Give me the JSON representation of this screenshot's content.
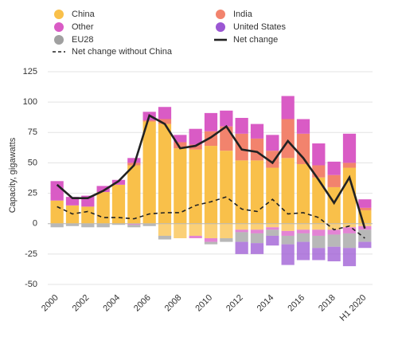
{
  "chart_data": {
    "type": "bar",
    "stacked": true,
    "y_label": "Capacity, gigawatts",
    "categories": [
      "2000",
      null,
      "2002",
      null,
      "2004",
      null,
      "2006",
      null,
      "2008",
      null,
      "2010",
      null,
      "2012",
      null,
      "2014",
      null,
      "2016",
      null,
      "2018",
      null,
      "H1 2020"
    ],
    "series": [
      {
        "name": "China",
        "color": "#f9c04a",
        "values": [
          19,
          15,
          14,
          26,
          32,
          48,
          84,
          82,
          62,
          61,
          64,
          60,
          52,
          52,
          46,
          54,
          49,
          38,
          30,
          46,
          11
        ],
        "retirements": [
          0,
          0,
          0,
          0,
          0,
          0,
          0,
          -10,
          -12,
          -10,
          -12,
          -12,
          -5,
          -5,
          -3,
          -6,
          -5,
          -5,
          -5,
          -3,
          -2
        ]
      },
      {
        "name": "India",
        "color": "#f2836d",
        "values": [
          0,
          0,
          0,
          0,
          0,
          2,
          1,
          4,
          5,
          4,
          12,
          20,
          22,
          18,
          14,
          32,
          25,
          10,
          10,
          4,
          2
        ],
        "retirements": [
          0,
          0,
          0,
          0,
          0,
          0,
          0,
          0,
          0,
          0,
          0,
          0,
          0,
          0,
          0,
          0,
          0,
          0,
          0,
          0,
          0
        ]
      },
      {
        "name": "Other",
        "color": "#d95bc5",
        "values": [
          16,
          7,
          9,
          5,
          4,
          4,
          7,
          10,
          6,
          13,
          15,
          13,
          13,
          12,
          13,
          19,
          12,
          18,
          11,
          24,
          7
        ],
        "retirements": [
          0,
          0,
          0,
          0,
          0,
          -1,
          0,
          0,
          0,
          -2,
          -3,
          0,
          -2,
          -3,
          -2,
          -4,
          -3,
          -5,
          -4,
          -5,
          -3
        ]
      },
      {
        "name": "EU28",
        "color": "#a0a0a0",
        "values": [
          0,
          0,
          0,
          0,
          0,
          0,
          0,
          0,
          0,
          0,
          0,
          0,
          0,
          0,
          0,
          0,
          0,
          0,
          0,
          0,
          0
        ],
        "retirements": [
          -3,
          -2,
          -3,
          -3,
          -1,
          -2,
          -2,
          -3,
          0,
          0,
          -2,
          -3,
          -8,
          -8,
          -5,
          -7,
          -7,
          -10,
          -10,
          -12,
          -10
        ]
      },
      {
        "name": "United States",
        "color": "#9b57d3",
        "values": [
          0,
          0,
          0,
          0,
          0,
          0,
          0,
          0,
          0,
          0,
          0,
          0,
          0,
          0,
          0,
          0,
          0,
          0,
          0,
          0,
          0
        ],
        "retirements": [
          0,
          0,
          0,
          0,
          0,
          0,
          0,
          0,
          0,
          0,
          0,
          0,
          -10,
          -9,
          -8,
          -17,
          -15,
          -10,
          -12,
          -15,
          -5
        ]
      }
    ],
    "lines": [
      {
        "name": "Net change",
        "color": "#222222",
        "dashed": false,
        "values": [
          32,
          21,
          21,
          27,
          35,
          48,
          89,
          82,
          62,
          64,
          71,
          80,
          61,
          59,
          50,
          68,
          54,
          36,
          17,
          38,
          -4
        ]
      },
      {
        "name": "Net change without China",
        "color": "#222222",
        "dashed": true,
        "values": [
          14,
          8,
          10,
          5,
          5,
          4,
          8,
          9,
          9,
          15,
          18,
          22,
          12,
          10,
          20,
          8,
          9,
          5,
          -5,
          -2,
          -12
        ]
      }
    ],
    "ylim": [
      -50,
      125
    ],
    "yticks": [
      -50,
      -25,
      0,
      25,
      50,
      75,
      100,
      125
    ],
    "grid": true
  }
}
